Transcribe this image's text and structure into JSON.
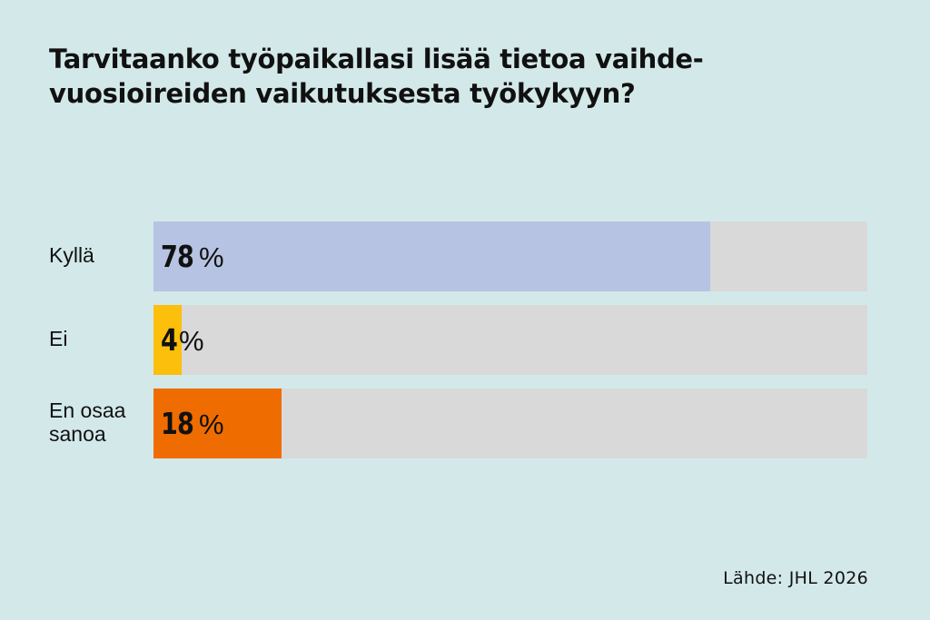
{
  "chart_data": {
    "type": "bar",
    "orientation": "horizontal",
    "title": "Tarvitaanko työpaikallasi lisää tietoa vaihde-vuosioireiden vaikutuksesta työkykyyn?",
    "title_lines": [
      "Tarvitaanko työpaikallasi lisää tietoa vaihde-",
      "vuosioireiden vaikutuksesta työkykyyn?"
    ],
    "categories": [
      "Kyllä",
      "Ei",
      "En osaa sanoa"
    ],
    "category_lines": [
      [
        "Kyllä"
      ],
      [
        "Ei"
      ],
      [
        "En osaa",
        "sanoa"
      ]
    ],
    "values": [
      78,
      4,
      18
    ],
    "value_unit": "%",
    "xlim": [
      0,
      100
    ],
    "colors": [
      "#b7c3e2",
      "#fbbf0c",
      "#ef6c00"
    ],
    "track_color": "#d9d9d9",
    "grid": false,
    "legend": "none",
    "source": "Lähde: JHL 2026"
  },
  "background_color": "#d3e8e9"
}
